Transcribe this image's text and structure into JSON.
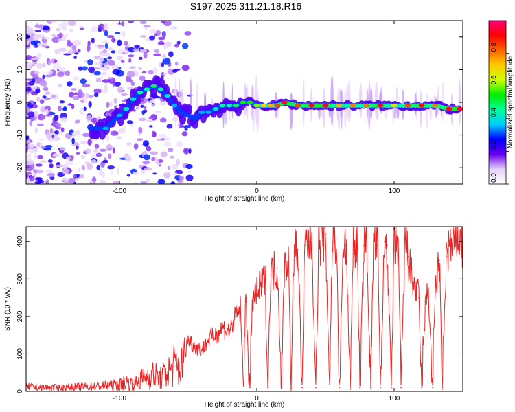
{
  "chart_data": [
    {
      "type": "heatmap",
      "title": "S197.2025.311.21.18.R16",
      "xlabel": "Height of straight line (km)",
      "ylabel": "Frequency (Hz)",
      "xlim": [
        -168,
        150
      ],
      "ylim": [
        -25,
        25
      ],
      "xticks": [
        -100,
        0,
        100
      ],
      "xtick_labels": [
        "-100",
        "0",
        "100"
      ],
      "yticks": [
        -20,
        -10,
        0,
        10,
        20
      ],
      "ytick_labels": [
        "-20",
        "-10",
        "0",
        "10",
        "20"
      ],
      "colorbar": {
        "label": "Normalized spectral amplitude",
        "range": [
          0,
          1
        ],
        "ticks": [
          0.0,
          0.2,
          0.4,
          0.6,
          0.8
        ],
        "tick_labels": [
          "0.0",
          "0.2",
          "0.4",
          "0.6",
          "0.8"
        ],
        "colors": [
          "#ffffff",
          "#e7cff7",
          "#6600ee",
          "#0000ff",
          "#00ccff",
          "#00ff99",
          "#00ee00",
          "#ccff00",
          "#ffcc00",
          "#ff6600",
          "#ff0000",
          "#ff0077"
        ]
      },
      "ridge": {
        "x": [
          -120,
          -110,
          -100,
          -95,
          -90,
          -85,
          -80,
          -75,
          -70,
          -65,
          -60,
          -55,
          -50,
          -45,
          -40,
          -35,
          -30,
          -25,
          -20,
          -15,
          -10,
          -5,
          0,
          5,
          10,
          15,
          20,
          30,
          40,
          50,
          60,
          70,
          80,
          90,
          100,
          110,
          120,
          130,
          140,
          148
        ],
        "y": [
          -8,
          -8,
          -4,
          -2,
          1,
          3,
          4,
          5,
          4,
          2,
          -1,
          -3,
          -4,
          -5,
          -3,
          -3,
          -2,
          -1,
          -1,
          -1,
          0,
          0,
          -1,
          -1,
          -1,
          -1,
          0,
          -1,
          -1,
          -1,
          -1,
          -1,
          -1,
          -1,
          -1,
          -1,
          -1,
          -1,
          -2,
          -2
        ],
        "amplitude": [
          0.3,
          0.35,
          0.35,
          0.4,
          0.4,
          0.45,
          0.45,
          0.5,
          0.45,
          0.4,
          0.35,
          0.3,
          0.3,
          0.3,
          0.35,
          0.35,
          0.4,
          0.45,
          0.45,
          0.5,
          0.55,
          0.55,
          0.6,
          0.7,
          0.75,
          0.85,
          0.95,
          0.85,
          0.95,
          0.95,
          0.75,
          0.8,
          0.8,
          0.95,
          0.7,
          0.85,
          0.9,
          0.8,
          0.95,
          0.95
        ]
      }
    },
    {
      "type": "line",
      "xlabel": "Height of straight line (km)",
      "ylabel": "SNR (10 * v/v)",
      "xlim": [
        -168,
        150
      ],
      "ylim": [
        0,
        440
      ],
      "xticks": [
        -100,
        0,
        100
      ],
      "xtick_labels": [
        "-100",
        "0",
        "100"
      ],
      "yticks": [
        0,
        100,
        200,
        300,
        400
      ],
      "ytick_labels": [
        "0",
        "100",
        "200",
        "300",
        "400"
      ],
      "series": [
        {
          "name": "SNR",
          "color": "#ee2222",
          "x": [
            -168,
            -150,
            -130,
            -115,
            -100,
            -95,
            -90,
            -85,
            -80,
            -75,
            -70,
            -65,
            -60,
            -55,
            -50,
            -45,
            -40,
            -35,
            -30,
            -25,
            -20,
            -15,
            -12,
            -10,
            -8,
            -5,
            -3,
            0,
            3,
            6,
            8,
            10,
            12,
            15,
            18,
            20,
            23,
            25,
            27,
            30,
            33,
            35,
            38,
            40,
            43,
            45,
            48,
            50,
            53,
            55,
            58,
            60,
            63,
            65,
            68,
            70,
            73,
            75,
            78,
            80,
            83,
            85,
            88,
            90,
            93,
            95,
            98,
            100,
            103,
            105,
            108,
            110,
            113,
            115,
            118,
            120,
            123,
            125,
            128,
            130,
            133,
            135,
            138,
            140,
            143,
            146,
            150
          ],
          "y": [
            12,
            10,
            12,
            14,
            18,
            25,
            20,
            30,
            40,
            45,
            35,
            50,
            70,
            60,
            140,
            120,
            110,
            140,
            150,
            170,
            160,
            200,
            220,
            30,
            240,
            10,
            250,
            260,
            280,
            300,
            10,
            310,
            320,
            330,
            10,
            330,
            360,
            10,
            370,
            380,
            10,
            390,
            400,
            410,
            10,
            390,
            410,
            420,
            20,
            400,
            410,
            10,
            380,
            390,
            15,
            380,
            400,
            10,
            390,
            410,
            10,
            400,
            390,
            10,
            400,
            390,
            10,
            380,
            400,
            10,
            410,
            360,
            300,
            280,
            250,
            10,
            240,
            270,
            10,
            280,
            350,
            10,
            360,
            390,
            380,
            420,
            380
          ]
        }
      ]
    }
  ]
}
